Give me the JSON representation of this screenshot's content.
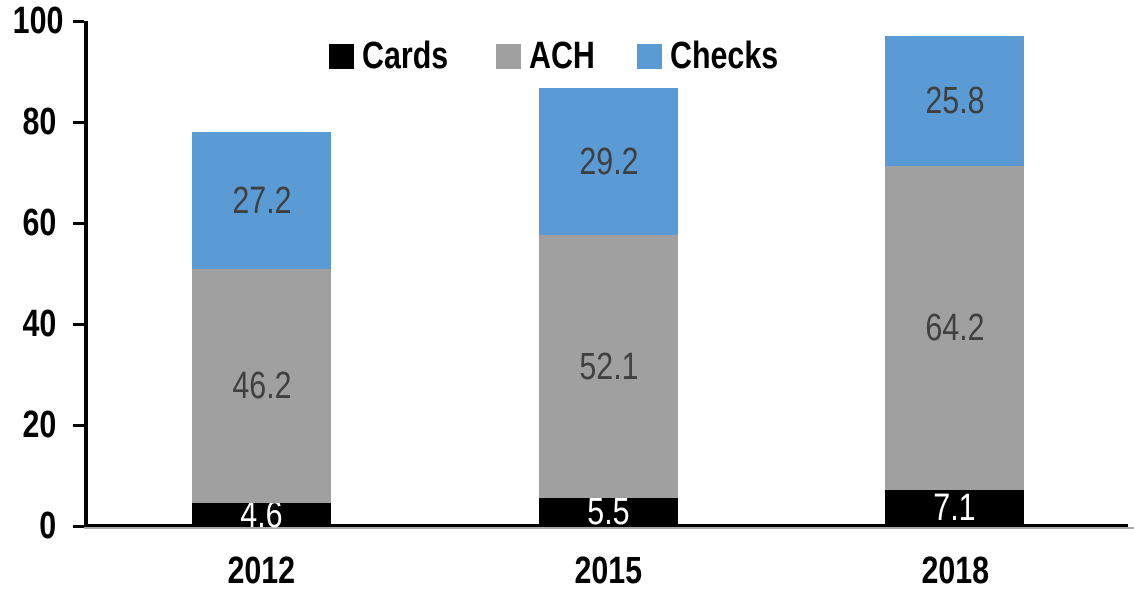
{
  "chart_data": {
    "type": "bar",
    "stacked": true,
    "title": "",
    "categories": [
      "2012",
      "2015",
      "2018"
    ],
    "series": [
      {
        "name": "Cards",
        "color": "#000000",
        "label_color": "#ffffff",
        "values": [
          4.6,
          5.5,
          7.1
        ]
      },
      {
        "name": "ACH",
        "color": "#a0a0a0",
        "label_color": "#404040",
        "values": [
          46.2,
          52.1,
          64.2
        ]
      },
      {
        "name": "Checks",
        "color": "#5b9bd5",
        "label_color": "#3f3f3f",
        "values": [
          27.2,
          29.2,
          25.8
        ]
      }
    ],
    "totals": [
      78.0,
      86.8,
      97.1
    ],
    "xlabel": "",
    "ylabel": "",
    "ylim": [
      0,
      100
    ],
    "yticks": [
      0,
      20,
      40,
      60,
      80,
      100
    ],
    "grid": false,
    "legend_position": "top-center",
    "axis_color": "#000000",
    "background_color": "#ffffff"
  }
}
